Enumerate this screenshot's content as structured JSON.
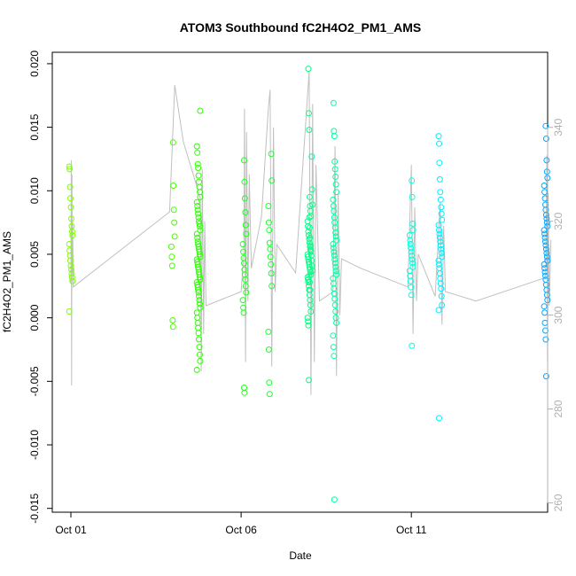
{
  "chart_data": {
    "type": "scatter",
    "title": "ATOM3 Southbound fC2H4O2_PM1_AMS",
    "xlabel": "Date",
    "ylabel": "fC2H4O2_PM1_AMS",
    "x_unit": "day of October",
    "xlim": [
      1,
      15.55
    ],
    "ylim": [
      -0.0153,
      0.0209
    ],
    "y2lim": [
      258,
      356
    ],
    "x_ticks": [
      {
        "value": 1,
        "label": "Oct 01"
      },
      {
        "value": 6,
        "label": "Oct 06"
      },
      {
        "value": 11,
        "label": "Oct 11"
      }
    ],
    "y_ticks": [
      -0.015,
      -0.01,
      -0.005,
      0.0,
      0.005,
      0.01,
      0.015,
      0.02
    ],
    "y_tick_labels": [
      "-0.015",
      "-0.010",
      "-0.005",
      "0.000",
      "0.005",
      "0.010",
      "0.015",
      "0.020"
    ],
    "y2_ticks": [
      260,
      280,
      300,
      320,
      340
    ],
    "y2_tick_labels": [
      "260",
      "280",
      "300",
      "320",
      "340"
    ],
    "grid": false,
    "legend": "none",
    "marker": "open circle",
    "color_scale": "point colour shifts from yellow-green to blue with date",
    "point_clusters": [
      {
        "x": 1.0,
        "color": "#7cff00",
        "points": [
          0.0119,
          0.0117,
          0.0103,
          0.0094,
          0.0087,
          0.0078,
          0.0072,
          0.0068,
          0.0065,
          0.0058,
          0.0053,
          0.0049,
          0.0045,
          0.0041,
          0.0038,
          0.0035,
          0.0032,
          0.0029,
          0.0005
        ]
      },
      {
        "x": 4.0,
        "color": "#44ff00",
        "points": [
          0.0138,
          0.0104,
          0.0085,
          0.0075,
          0.0064,
          0.0056,
          0.0048,
          0.0041,
          -0.0002,
          -0.0007
        ]
      },
      {
        "x": 4.75,
        "color": "#2cff00",
        "points": [
          0.0163,
          0.0135,
          0.013,
          0.0121,
          0.0118,
          0.0112,
          0.0107,
          0.0103,
          0.0099,
          0.0095,
          0.0091,
          0.0088,
          0.0085,
          0.0082,
          0.0079,
          0.0076,
          0.0074,
          0.0072,
          0.0069,
          0.0066,
          0.0063,
          0.006,
          0.0058,
          0.0056,
          0.0054,
          0.0052,
          0.005,
          0.0048,
          0.0046,
          0.0044,
          0.0042,
          0.004,
          0.0038,
          0.0036,
          0.0034,
          0.0032,
          0.003,
          0.0028,
          0.0026,
          0.0024,
          0.0022,
          0.002,
          0.0017,
          0.0014,
          0.0011,
          0.0008,
          0.0004,
          0.0,
          -0.0004,
          -0.0008,
          -0.0012,
          -0.0017,
          -0.0023,
          -0.0029,
          -0.0034,
          -0.0041
        ]
      },
      {
        "x": 6.1,
        "color": "#20ff20",
        "points": [
          0.0124,
          0.0107,
          0.0094,
          0.0083,
          0.0073,
          0.0066,
          0.0058,
          0.0052,
          0.0047,
          0.0043,
          0.0038,
          0.0034,
          0.003,
          0.0025,
          0.002,
          0.0014,
          0.0008,
          0.0004,
          -0.0055,
          -0.0059
        ]
      },
      {
        "x": 6.85,
        "color": "#18ff30",
        "points": [
          0.0129,
          0.0108,
          0.0088,
          0.0075,
          0.0069,
          0.0059,
          0.0054,
          0.0048,
          0.0042,
          0.0035,
          0.0025,
          -0.0011,
          -0.0025,
          -0.0051,
          -0.006
        ]
      },
      {
        "x": 8.0,
        "color": "#00ff80",
        "points": [
          0.0196,
          0.0161,
          0.0148,
          0.0095,
          0.0088,
          0.0084,
          0.008,
          0.0076,
          0.0072,
          0.0068,
          0.0065,
          0.0062,
          0.0059,
          0.0056,
          0.0054,
          0.0052,
          0.005,
          0.0048,
          0.0046,
          0.0044,
          0.0042,
          0.004,
          0.0038,
          0.0036,
          0.0034,
          0.0032,
          0.003,
          0.0028,
          0.0025,
          0.0022,
          0.0018,
          0.0014,
          0.001,
          0.0005,
          0.0,
          -0.0003,
          -0.0006,
          -0.0049
        ]
      },
      {
        "x": 8.05,
        "color": "#00ff90",
        "points": [
          0.0127,
          0.0101,
          0.0089,
          0.0079,
          0.0071,
          0.0063,
          0.0057,
          0.0053,
          0.0049,
          0.0045,
          0.0041,
          0.0037,
          0.0033,
          0.0028,
          0.0022
        ]
      },
      {
        "x": 8.75,
        "color": "#00ffa0",
        "points": [
          0.0169,
          0.0147,
          0.0143,
          0.0123,
          0.0117,
          0.0111,
          0.0105,
          0.0099,
          0.0093,
          0.0088,
          0.0084,
          0.0079,
          0.0075,
          0.0071,
          0.0067,
          0.0064,
          0.0061,
          0.0058,
          0.0055,
          0.0052,
          0.0049,
          0.0046,
          0.0043,
          0.004,
          0.0037,
          0.0034,
          0.0031,
          0.0027,
          0.0023,
          0.0019,
          0.0015,
          0.001,
          0.0005,
          0.0,
          -0.0004,
          -0.0014,
          -0.0023,
          -0.003,
          -0.0143
        ]
      },
      {
        "x": 11.0,
        "color": "#00ffe0",
        "points": [
          0.0108,
          0.0095,
          0.0074,
          0.0069,
          0.0065,
          0.0061,
          0.0058,
          0.0055,
          0.0052,
          0.0049,
          0.0046,
          0.0043,
          0.004,
          0.0037,
          0.0033,
          0.0029,
          0.0024,
          0.0018,
          -0.0022
        ]
      },
      {
        "x": 11.85,
        "color": "#00eeff",
        "points": [
          0.0143,
          0.0137,
          0.0122,
          0.0109,
          0.0099,
          0.0093,
          0.0087,
          0.0082,
          0.0077,
          0.0073,
          0.0069,
          0.0066,
          0.0063,
          0.006,
          0.0057,
          0.0054,
          0.0051,
          0.0048,
          0.0045,
          0.0042,
          0.0039,
          0.0035,
          0.0031,
          0.0027,
          0.0023,
          0.0017,
          0.001,
          0.0006,
          -0.0079
        ]
      },
      {
        "x": 14.95,
        "color": "#00a8ff",
        "points": [
          0.0151,
          0.0141,
          0.0124,
          0.0115,
          0.011,
          0.0104,
          0.0099,
          0.0094,
          0.0089,
          0.0085,
          0.0081,
          0.0078,
          0.0075,
          0.0072,
          0.0069,
          0.0066,
          0.0063,
          0.006,
          0.0057,
          0.0054,
          0.0051,
          0.0048,
          0.0045,
          0.0042,
          0.0039,
          0.0036,
          0.0033,
          0.003,
          0.0026,
          0.0022,
          0.0018,
          0.0014,
          0.0009,
          0.0004,
          -0.0004,
          -0.001,
          -0.0017,
          -0.0046
        ]
      }
    ],
    "line_series": {
      "axis": "right",
      "color": "#c0c0c0",
      "points": [
        [
          1.0,
          307
        ],
        [
          1.01,
          333
        ],
        [
          1.02,
          285
        ],
        [
          1.03,
          330
        ],
        [
          1.04,
          309
        ],
        [
          1.05,
          320
        ],
        [
          1.07,
          306
        ],
        [
          3.9,
          322
        ],
        [
          4.05,
          349
        ],
        [
          4.3,
          337
        ],
        [
          4.8,
          325
        ],
        [
          4.83,
          288
        ],
        [
          4.86,
          331
        ],
        [
          4.9,
          296
        ],
        [
          4.93,
          320
        ],
        [
          4.97,
          302
        ],
        [
          6.0,
          305
        ],
        [
          6.08,
          313
        ],
        [
          6.1,
          344
        ],
        [
          6.13,
          290
        ],
        [
          6.16,
          339
        ],
        [
          6.2,
          303
        ],
        [
          6.24,
          330
        ],
        [
          6.3,
          310
        ],
        [
          6.6,
          321
        ],
        [
          6.8,
          344
        ],
        [
          6.85,
          348
        ],
        [
          6.9,
          289
        ],
        [
          6.95,
          340
        ],
        [
          7.0,
          305
        ],
        [
          7.05,
          315
        ],
        [
          7.6,
          309
        ],
        [
          8.0,
          352
        ],
        [
          8.05,
          283
        ],
        [
          8.1,
          345
        ],
        [
          8.15,
          290
        ],
        [
          8.2,
          332
        ],
        [
          8.3,
          303
        ],
        [
          8.7,
          305
        ],
        [
          8.76,
          336
        ],
        [
          8.8,
          287
        ],
        [
          8.85,
          326
        ],
        [
          8.9,
          300
        ],
        [
          8.95,
          312
        ],
        [
          9.5,
          310
        ],
        [
          10.9,
          306
        ],
        [
          11.0,
          332
        ],
        [
          11.05,
          296
        ],
        [
          11.1,
          323
        ],
        [
          11.15,
          303
        ],
        [
          11.2,
          313
        ],
        [
          11.7,
          304
        ],
        [
          11.85,
          324
        ],
        [
          11.9,
          298
        ],
        [
          11.95,
          319
        ],
        [
          12.0,
          305
        ],
        [
          12.9,
          303
        ],
        [
          14.95,
          308
        ],
        [
          14.98,
          334
        ],
        [
          15.0,
          290
        ],
        [
          15.02,
          326
        ],
        [
          15.05,
          302
        ],
        [
          15.1,
          316
        ]
      ]
    }
  }
}
